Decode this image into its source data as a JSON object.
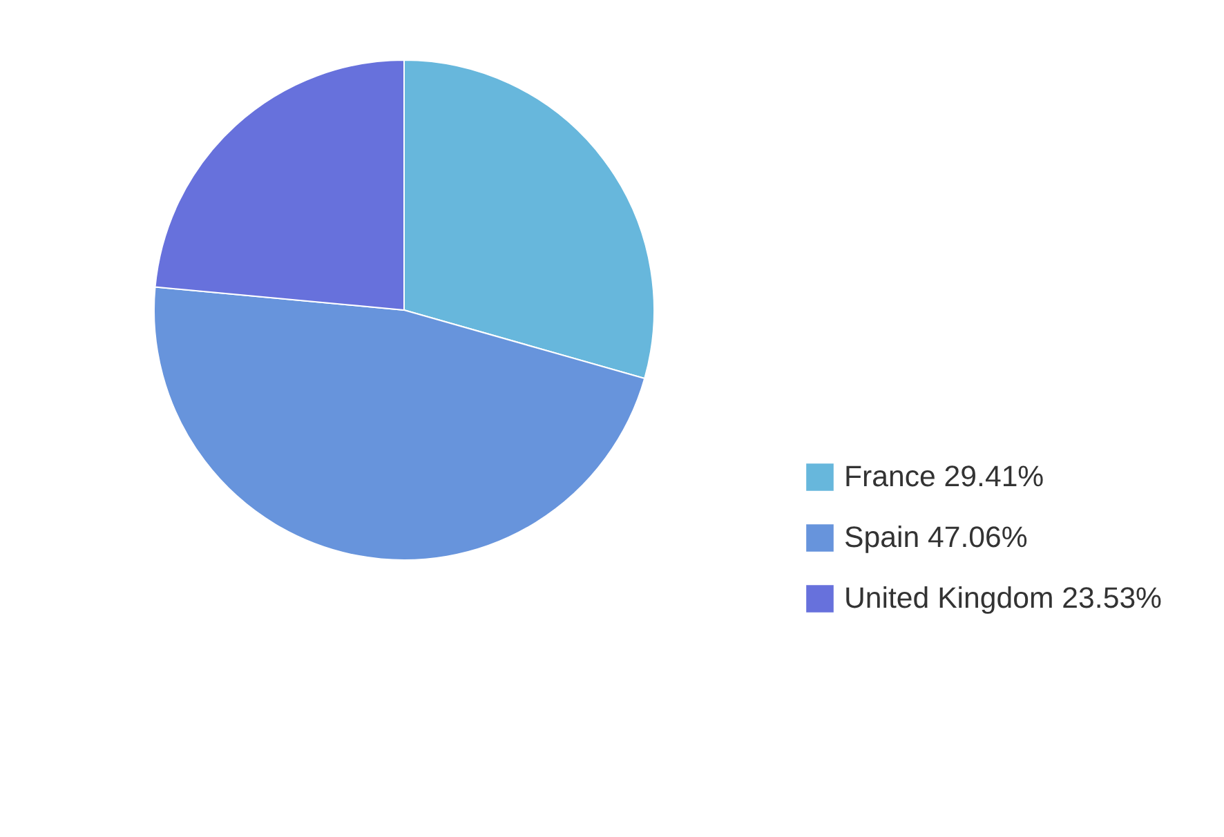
{
  "chart_data": {
    "type": "pie",
    "categories": [
      "France",
      "Spain",
      "United Kingdom"
    ],
    "values": [
      29.41,
      47.06,
      23.53
    ],
    "value_labels": [
      "29.41%",
      "47.06%",
      "23.53%"
    ],
    "colors": [
      "#67b7dc",
      "#6794dc",
      "#6771dc"
    ],
    "legend": "right"
  }
}
